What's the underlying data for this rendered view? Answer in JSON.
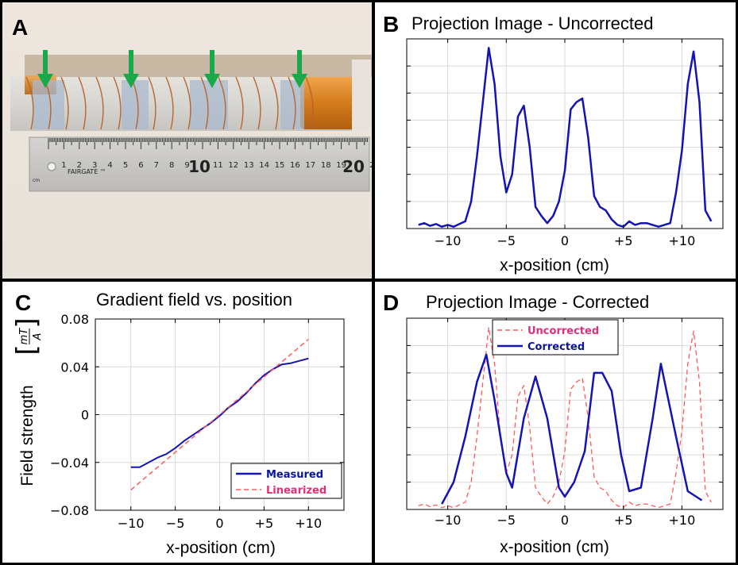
{
  "panels": {
    "a": {
      "label": "A",
      "ruler_brand": "FAIRGATE ™",
      "ruler_units": "cm",
      "ruler_numbers": [
        "1",
        "2",
        "3",
        "4",
        "5",
        "6",
        "7",
        "8",
        "9",
        "10",
        "11",
        "12",
        "13",
        "14",
        "15",
        "16",
        "17",
        "18",
        "19",
        "20",
        "2"
      ]
    },
    "b": {
      "label": "B",
      "title": "Projection Image - Uncorrected",
      "xlabel": "x-position (cm)"
    },
    "c": {
      "label": "C",
      "title": "Gradient field vs. position",
      "xlabel": "x-position (cm)",
      "ylabel": "Field strength",
      "yunit_num": "mT",
      "yunit_den": "A"
    },
    "d": {
      "label": "D",
      "title": "Projection Image - Corrected",
      "xlabel": "x-position (cm)"
    }
  },
  "colors": {
    "blue": "#1414b4",
    "red": "#ff5a5a",
    "legend_red": "#e0307a",
    "legend_blue": "#0a1496",
    "arrow": "#1aa84a"
  },
  "chart_data": [
    {
      "id": "B",
      "type": "line",
      "title": "Projection Image - Uncorrected",
      "xlabel": "x-position (cm)",
      "xlim": [
        -13.5,
        13.5
      ],
      "ylim": [
        0,
        1.05
      ],
      "xticks": [
        -10,
        -5,
        0,
        5,
        10
      ],
      "xtick_labels": [
        "−10",
        "−5",
        "0",
        "+5",
        "+10"
      ],
      "yticks": [
        0.15,
        0.3,
        0.45,
        0.6,
        0.75,
        0.9
      ],
      "ytick_labels": [
        "",
        "",
        "",
        "",
        "",
        ""
      ],
      "grid": true,
      "series": [
        {
          "name": "Uncorrected",
          "color": "#1414b4",
          "style": "solid",
          "width": 2.5,
          "x": [
            -12.5,
            -12,
            -11.5,
            -11,
            -10.5,
            -10,
            -9.5,
            -9,
            -8.5,
            -8,
            -7.5,
            -7,
            -6.5,
            -6,
            -5.5,
            -5,
            -4.5,
            -4,
            -3.5,
            -3,
            -2.5,
            -2,
            -1.5,
            -1,
            -0.5,
            0,
            0.5,
            1,
            1.5,
            2,
            2.5,
            3,
            3.5,
            4,
            4.5,
            5,
            5.5,
            6,
            6.5,
            7,
            7.5,
            8,
            8.5,
            9,
            9.5,
            10,
            10.5,
            11,
            11.5,
            12,
            12.5
          ],
          "y": [
            0.02,
            0.03,
            0.015,
            0.025,
            0.01,
            0.02,
            0.01,
            0.025,
            0.04,
            0.15,
            0.4,
            0.7,
            1.0,
            0.8,
            0.4,
            0.2,
            0.3,
            0.62,
            0.68,
            0.45,
            0.12,
            0.07,
            0.03,
            0.07,
            0.15,
            0.32,
            0.66,
            0.7,
            0.72,
            0.5,
            0.18,
            0.12,
            0.1,
            0.05,
            0.02,
            0.01,
            0.04,
            0.02,
            0.03,
            0.03,
            0.02,
            0.01,
            0.02,
            0.03,
            0.2,
            0.43,
            0.8,
            0.98,
            0.7,
            0.1,
            0.04
          ]
        }
      ]
    },
    {
      "id": "C",
      "type": "line",
      "title": "Gradient field vs. position",
      "xlabel": "x-position (cm)",
      "ylabel": "Field strength [mT/A]",
      "xlim": [
        -14,
        14
      ],
      "ylim": [
        -0.08,
        0.08
      ],
      "xticks": [
        -10,
        -5,
        0,
        5,
        10
      ],
      "xtick_labels": [
        "−10",
        "−5",
        "0",
        "+5",
        "+10"
      ],
      "yticks": [
        -0.08,
        -0.04,
        0,
        0.04,
        0.08
      ],
      "ytick_labels": [
        "−0.08",
        "−0.04",
        "0",
        "0.04",
        "0.08"
      ],
      "grid": true,
      "legend_position": "bottom-right",
      "series": [
        {
          "name": "Measured",
          "color": "#1414b4",
          "style": "solid",
          "width": 2,
          "x": [
            -10,
            -9,
            -8,
            -7,
            -6,
            -5,
            -4,
            -3,
            -2,
            -1,
            0,
            1,
            2,
            3,
            4,
            5,
            6,
            7,
            8,
            9,
            10
          ],
          "y": [
            -0.044,
            -0.044,
            -0.04,
            -0.036,
            -0.033,
            -0.028,
            -0.022,
            -0.017,
            -0.012,
            -0.007,
            -0.001,
            0.006,
            0.011,
            0.018,
            0.026,
            0.033,
            0.038,
            0.042,
            0.043,
            0.045,
            0.047
          ]
        },
        {
          "name": "Linearized",
          "color": "#ff5a5a",
          "style": "dashed",
          "width": 1.5,
          "x": [
            -10,
            10
          ],
          "y": [
            -0.063,
            0.063
          ]
        }
      ]
    },
    {
      "id": "D",
      "type": "line",
      "title": "Projection Image - Corrected",
      "xlabel": "x-position (cm)",
      "xlim": [
        -13.5,
        13.5
      ],
      "ylim": [
        0,
        1.05
      ],
      "xticks": [
        -10,
        -5,
        0,
        5,
        10
      ],
      "xtick_labels": [
        "−10",
        "−5",
        "0",
        "+5",
        "+10"
      ],
      "yticks": [
        0.15,
        0.3,
        0.45,
        0.6,
        0.75,
        0.9
      ],
      "ytick_labels": [
        "",
        "",
        "",
        "",
        "",
        ""
      ],
      "grid": true,
      "legend_position": "top-left",
      "series": [
        {
          "name": "Uncorrected",
          "color": "#ff5a5a",
          "style": "dashed",
          "width": 1.3,
          "x": [
            -12.5,
            -12,
            -11.5,
            -11,
            -10.5,
            -10,
            -9.5,
            -9,
            -8.5,
            -8,
            -7.5,
            -7,
            -6.5,
            -6,
            -5.5,
            -5,
            -4.5,
            -4,
            -3.5,
            -3,
            -2.5,
            -2,
            -1.5,
            -1,
            -0.5,
            0,
            0.5,
            1,
            1.5,
            2,
            2.5,
            3,
            3.5,
            4,
            4.5,
            5,
            5.5,
            6,
            6.5,
            7,
            7.5,
            8,
            8.5,
            9,
            9.5,
            10,
            10.5,
            11,
            11.5,
            12,
            12.5
          ],
          "y": [
            0.02,
            0.03,
            0.015,
            0.025,
            0.01,
            0.02,
            0.01,
            0.025,
            0.04,
            0.15,
            0.4,
            0.7,
            1.0,
            0.8,
            0.4,
            0.2,
            0.3,
            0.62,
            0.68,
            0.45,
            0.12,
            0.07,
            0.03,
            0.07,
            0.15,
            0.32,
            0.66,
            0.7,
            0.72,
            0.5,
            0.18,
            0.12,
            0.1,
            0.05,
            0.02,
            0.01,
            0.04,
            0.02,
            0.03,
            0.03,
            0.02,
            0.01,
            0.02,
            0.03,
            0.2,
            0.43,
            0.8,
            0.98,
            0.7,
            0.1,
            0.04
          ]
        },
        {
          "name": "Corrected",
          "color": "#1414b4",
          "style": "solid",
          "width": 2.5,
          "x": [
            -10.5,
            -9.5,
            -8.5,
            -7.5,
            -6.7,
            -6,
            -5,
            -4.5,
            -3.5,
            -2.5,
            -1.5,
            -0.5,
            0,
            0.8,
            1.7,
            2.5,
            3.2,
            4,
            4.8,
            5.5,
            6.5,
            7.5,
            8.2,
            9.5,
            10.5,
            11.7
          ],
          "y": [
            0.03,
            0.15,
            0.4,
            0.7,
            0.85,
            0.6,
            0.2,
            0.12,
            0.5,
            0.73,
            0.5,
            0.12,
            0.07,
            0.15,
            0.32,
            0.75,
            0.75,
            0.65,
            0.3,
            0.1,
            0.12,
            0.5,
            0.8,
            0.4,
            0.1,
            0.05
          ]
        }
      ]
    }
  ]
}
